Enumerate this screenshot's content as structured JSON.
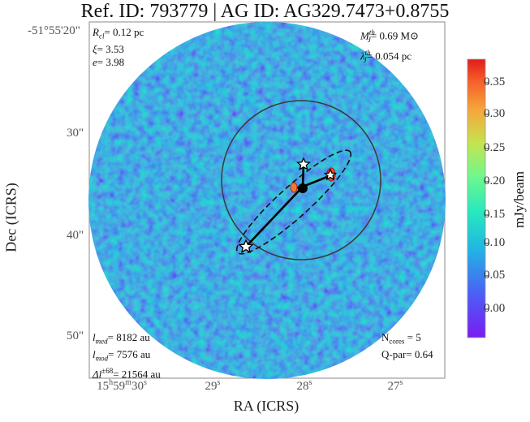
{
  "title": "Ref. ID: 793779 | AG ID: AG329.7473+0.8755",
  "axes": {
    "ylabel": "Dec (ICRS)",
    "xlabel": "RA (ICRS)",
    "dec_ticks": [
      "-51°55'20\"",
      "30\"",
      "40\"",
      "50\""
    ],
    "ra_ticks": [
      {
        "main": "15",
        "sup1": "h",
        "mid": "59",
        "sup2": "m",
        "end": "30",
        "sup3": "s"
      },
      {
        "main": "29",
        "sup3": "s"
      },
      {
        "main": "28",
        "sup3": "s"
      },
      {
        "main": "27",
        "sup3": "s"
      }
    ]
  },
  "colorbar": {
    "label": "mJy/beam",
    "ticks": [
      "0.35",
      "0.30",
      "0.25",
      "0.20",
      "0.15",
      "0.10",
      "0.05",
      "0.00"
    ],
    "colormap": [
      "#7a1cf2",
      "#3b83f8",
      "#1ad0d4",
      "#3af5a4",
      "#a6f759",
      "#f5c53a",
      "#f86d2a",
      "#e02424"
    ]
  },
  "annotations": {
    "top_left": {
      "rcl_sym": "R",
      "rcl_sub": "cl",
      "rcl_val": "= 0.12 pc",
      "xi_sym": "ξ",
      "xi_val": "= 3.53",
      "e_sym": "e",
      "e_val": "= 3.98"
    },
    "top_right": {
      "mj_sym": "M",
      "mj_sup": "th",
      "mj_sub": "J",
      "mj_val": "= 0.69 M⊙",
      "lj_sym": "λ",
      "lj_sup": "th",
      "lj_sub": "J",
      "lj_val": "= 0.054 pc"
    },
    "bottom_left": {
      "lmed_sym": "l",
      "lmed_sub": "med",
      "lmed_val": "= 8182 au",
      "lmod_sym": "l",
      "lmod_sub": "mod",
      "lmod_val": "= 7576 au",
      "dl_sym": "Δl",
      "dl_sup": "±68",
      "dl_val": "= 21564 au"
    },
    "bottom_right": {
      "ncores": "N",
      "ncores_sub": "cores",
      "ncores_val": " = 5",
      "qpar": "Q-par= 0.64"
    }
  }
}
